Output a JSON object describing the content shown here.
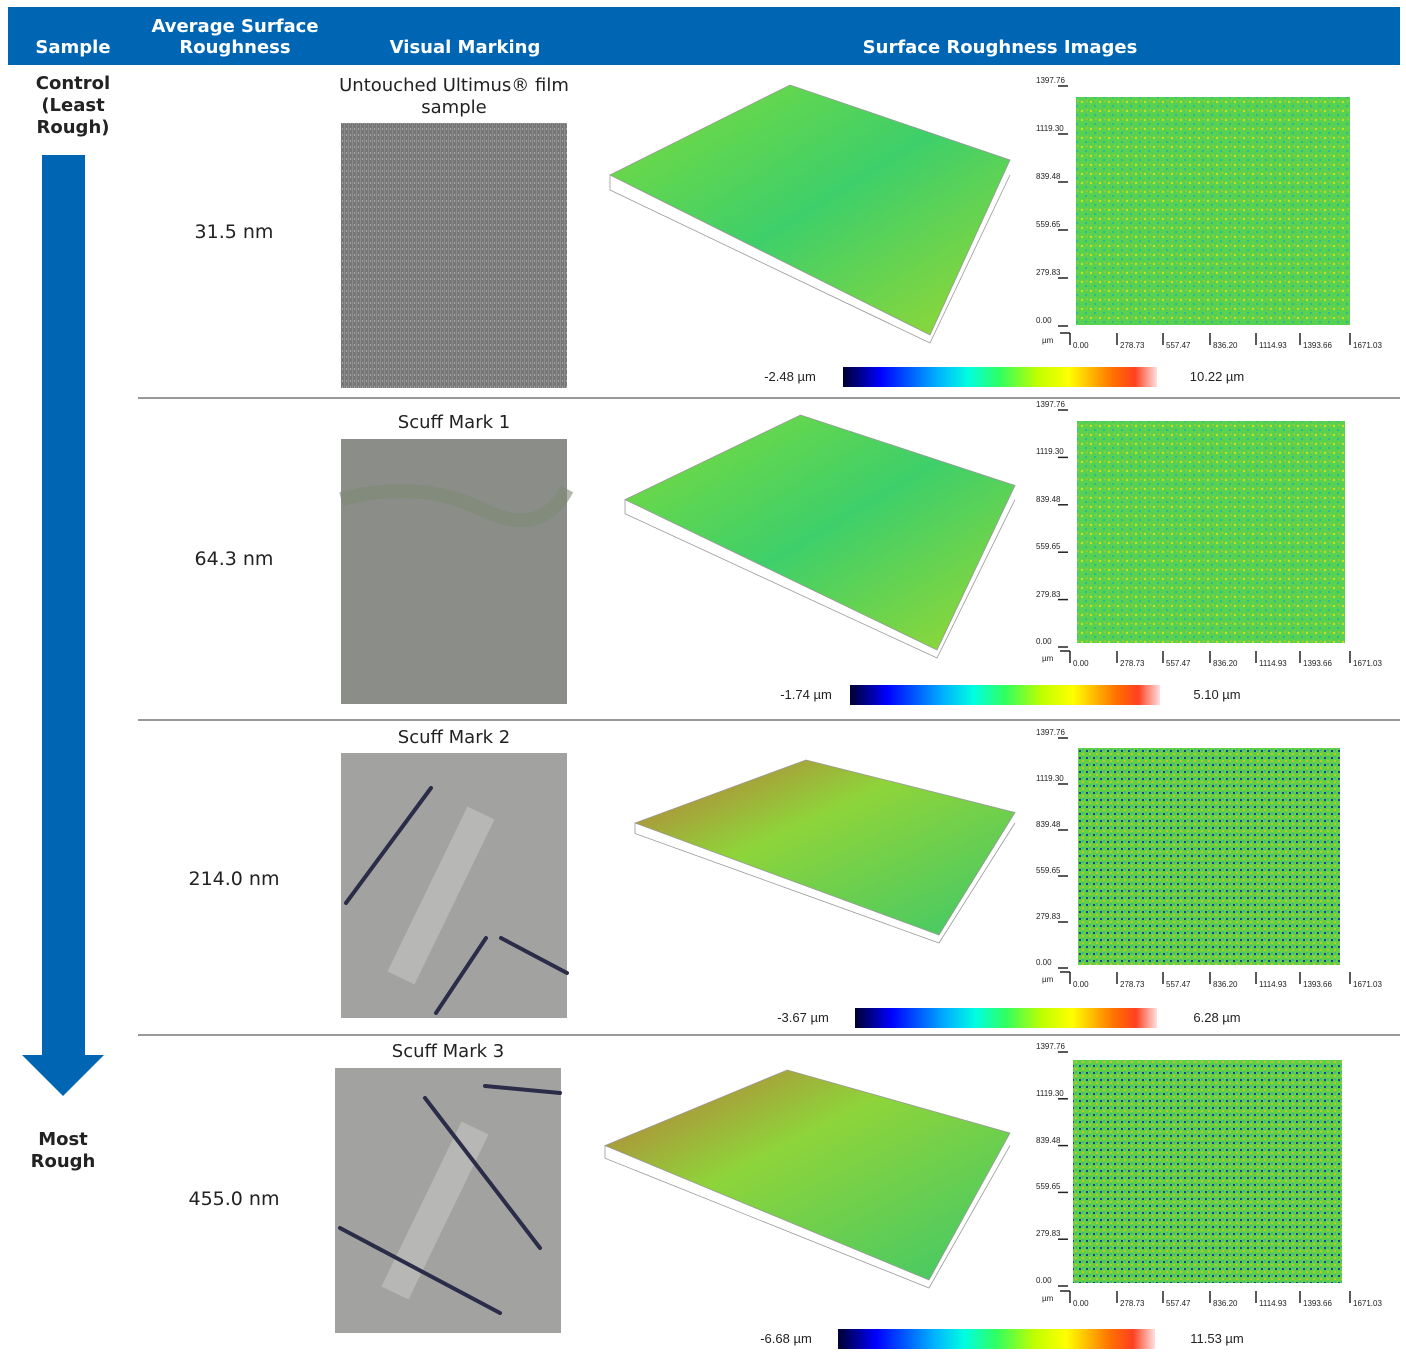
{
  "header": {
    "columns": [
      "Sample",
      "Average Surface Roughness",
      "Visual Marking",
      "Surface Roughness Images"
    ]
  },
  "scale": {
    "top": "Control (Least Rough)",
    "bottom": "Most Rough"
  },
  "map_axes": {
    "y_ticks": [
      "1397.76",
      "1119.30",
      "839.48",
      "559.65",
      "279.83",
      "0.00"
    ],
    "x_ticks": [
      "0.00",
      "278.73",
      "557.47",
      "836.20",
      "1114.93",
      "1393.66",
      "1671.03"
    ],
    "unit": "µm"
  },
  "rows": [
    {
      "roughness": "31.5 nm",
      "marking": "Untouched Ultimus® film sample",
      "colorbar_min": "-2.48 µm",
      "colorbar_max": "10.22 µm"
    },
    {
      "roughness": "64.3 nm",
      "marking": "Scuff Mark 1",
      "colorbar_min": "-1.74 µm",
      "colorbar_max": "5.10 µm"
    },
    {
      "roughness": "214.0 nm",
      "marking": "Scuff Mark 2",
      "colorbar_min": "-3.67 µm",
      "colorbar_max": "6.28 µm"
    },
    {
      "roughness": "455.0 nm",
      "marking": "Scuff Mark 3",
      "colorbar_min": "-6.68 µm",
      "colorbar_max": "11.53 µm"
    }
  ]
}
